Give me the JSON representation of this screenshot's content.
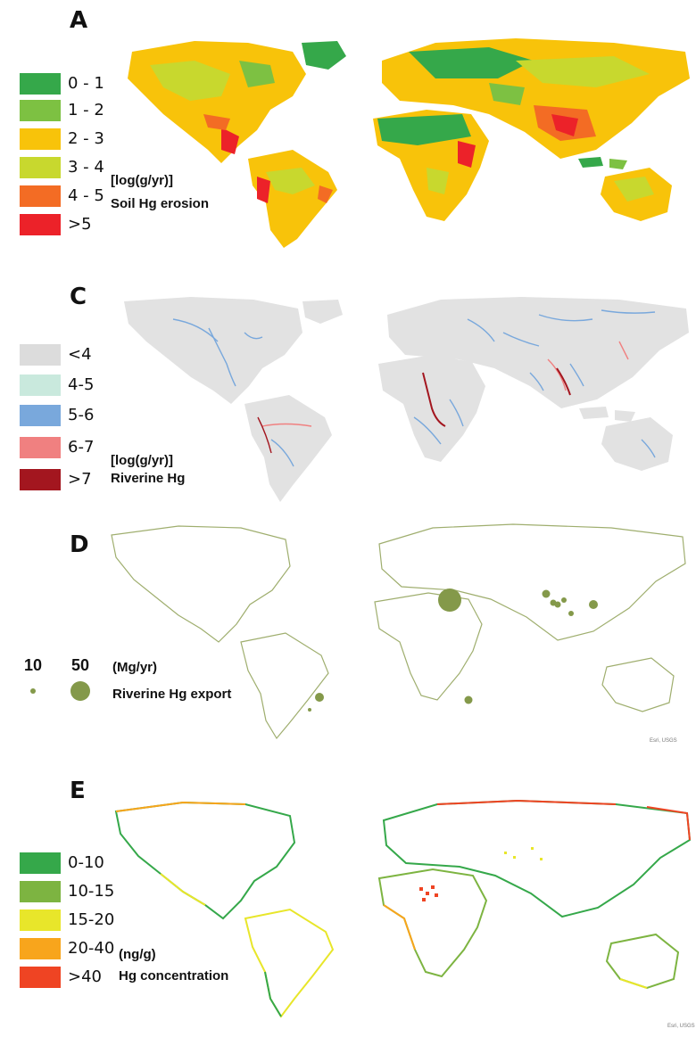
{
  "panels": {
    "A": {
      "letter": "A",
      "legend": [
        {
          "label": "0 - 1",
          "color": "#35a84a"
        },
        {
          "label": "1 - 2",
          "color": "#7dc142"
        },
        {
          "label": "2 - 3",
          "color": "#f8c30a"
        },
        {
          "label": "3 - 4",
          "color": "#c8d82e"
        },
        {
          "label": "4 - 5",
          "color": "#f36c24"
        },
        {
          "label": ">5",
          "color": "#ec2229"
        }
      ],
      "unit": "[log(g/yr)]",
      "title": "Soil Hg erosion"
    },
    "C": {
      "letter": "C",
      "legend": [
        {
          "label": "<4",
          "color": "#dcdcdc"
        },
        {
          "label": "4-5",
          "color": "#c9e9dd"
        },
        {
          "label": "5-6",
          "color": "#79a8dc"
        },
        {
          "label": "6-7",
          "color": "#f08080"
        },
        {
          "label": ">7",
          "color": "#a3161f"
        }
      ],
      "unit": "[log(g/yr)]",
      "title": "Riverine Hg",
      "land_color": "#e2e2e2"
    },
    "D": {
      "letter": "D",
      "bubble_legend": [
        {
          "label": "10",
          "value": 10
        },
        {
          "label": "50",
          "value": 50
        }
      ],
      "unit": "(Mg/yr)",
      "title": "Riverine Hg export",
      "credit": "Esri, USGS",
      "bubble_color": "#84994a"
    },
    "E": {
      "letter": "E",
      "legend": [
        {
          "label": "0-10",
          "color": "#35a84a"
        },
        {
          "label": "10-15",
          "color": "#7db441"
        },
        {
          "label": "15-20",
          "color": "#e8e62a"
        },
        {
          "label": "20-40",
          "color": "#f8a51c"
        },
        {
          "label": ">40",
          "color": "#ef4423"
        }
      ],
      "unit": "(ng/g)",
      "title": "Hg concentration",
      "credit": "Esri, USGS"
    }
  }
}
